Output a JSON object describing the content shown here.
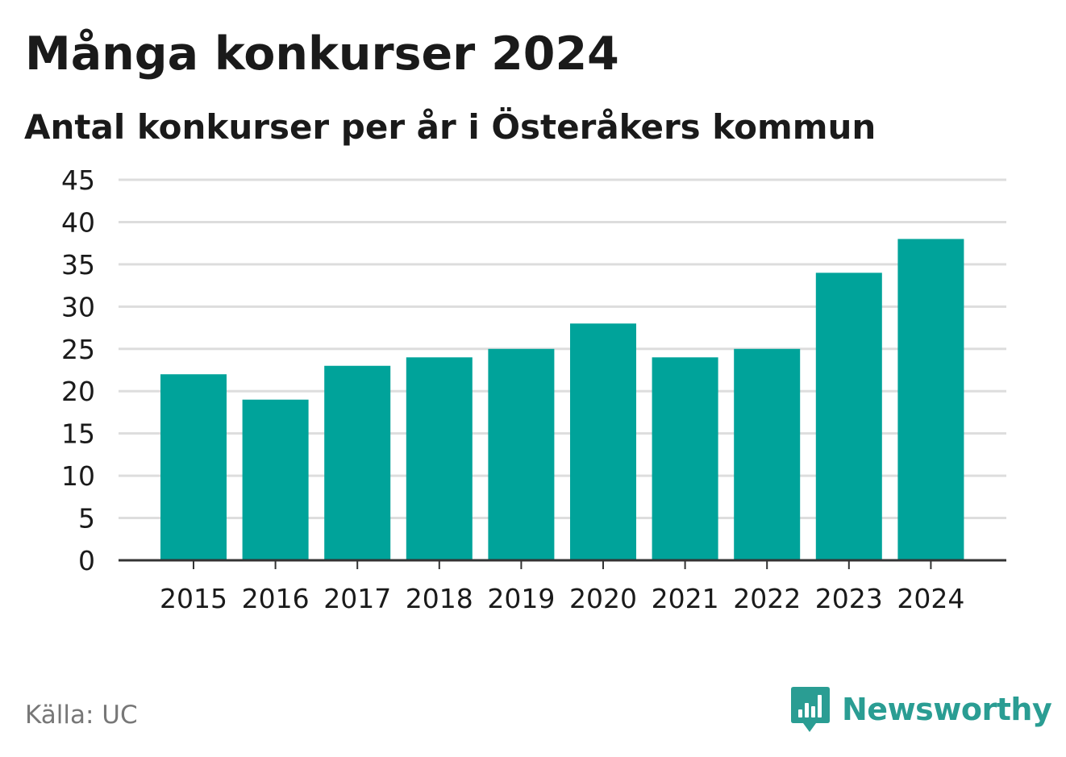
{
  "header": {
    "title": "Många konkurser 2024",
    "subtitle": "Antal konkurser per år i Österåkers kommun"
  },
  "footer": {
    "source": "Källa: UC",
    "brand": "Newsworthy"
  },
  "colors": {
    "bar": "#00a39a",
    "grid": "#dddddd",
    "axis": "#333333",
    "text": "#1a1a1a",
    "muted": "#777777",
    "brand": "#2a9d93"
  },
  "chart_data": {
    "type": "bar",
    "title": "Många konkurser 2024",
    "subtitle": "Antal konkurser per år i Österåkers kommun",
    "xlabel": "",
    "ylabel": "",
    "categories": [
      "2015",
      "2016",
      "2017",
      "2018",
      "2019",
      "2020",
      "2021",
      "2022",
      "2023",
      "2024"
    ],
    "values": [
      22,
      19,
      23,
      24,
      25,
      28,
      24,
      25,
      34,
      38
    ],
    "ylim": [
      0,
      45
    ],
    "yticks": [
      "0",
      "5",
      "10",
      "15",
      "20",
      "25",
      "30",
      "35",
      "40",
      "45"
    ],
    "grid": true
  }
}
